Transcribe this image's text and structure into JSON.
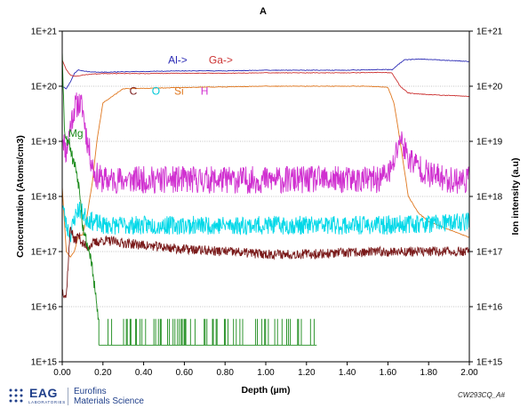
{
  "chart_data": {
    "type": "line",
    "title": "A",
    "xlabel": "Depth (µm)",
    "ylabel_left": "Concentration (Atoms/cm3)",
    "ylabel_right": "Ion intensity (a.u)",
    "xlim": [
      0,
      2.0
    ],
    "ylim": [
      1000000000000000.0,
      1e+21
    ],
    "y_scale": "log",
    "x_ticks": [
      "0.00",
      "0.20",
      "0.40",
      "0.60",
      "0.80",
      "1.00",
      "1.20",
      "1.40",
      "1.60",
      "1.80",
      "2.00"
    ],
    "y_ticks": [
      "1E+15",
      "1E+16",
      "1E+17",
      "1E+18",
      "1E+19",
      "1E+20",
      "1E+21"
    ],
    "grid": "horizontal-dotted",
    "annotations": [
      {
        "text": "Al->",
        "color": "#2b2bb5",
        "x": 0.52,
        "y": 2.6e+20
      },
      {
        "text": "Ga->",
        "color": "#cc3333",
        "x": 0.72,
        "y": 2.6e+20
      },
      {
        "text": "C",
        "color": "#7a1a1a",
        "x": 0.33,
        "y": 7e+19
      },
      {
        "text": "O",
        "color": "#00c8d8",
        "x": 0.44,
        "y": 7e+19
      },
      {
        "text": "Si",
        "color": "#e07820",
        "x": 0.55,
        "y": 7e+19
      },
      {
        "text": "H",
        "color": "#d030d0",
        "x": 0.68,
        "y": 7e+19
      },
      {
        "text": "Mg",
        "color": "#1a8a1a",
        "x": 0.03,
        "y": 1.2e+19
      }
    ],
    "series": [
      {
        "name": "Al",
        "color": "#2b2bb5",
        "axis": "right",
        "x": [
          0.0,
          0.02,
          0.04,
          0.06,
          0.08,
          0.1,
          0.12,
          0.15,
          0.2,
          0.4,
          0.6,
          0.8,
          1.0,
          1.2,
          1.4,
          1.55,
          1.62,
          1.68,
          1.75,
          1.85,
          2.0
        ],
        "y": [
          1e+20,
          9e+19,
          1.2e+20,
          1.7e+20,
          2e+20,
          1.9e+20,
          1.85e+20,
          1.8e+20,
          1.8e+20,
          1.85e+20,
          1.9e+20,
          1.9e+20,
          1.95e+20,
          1.95e+20,
          1.95e+20,
          2e+20,
          2e+20,
          3e+20,
          3.1e+20,
          3e+20,
          2.8e+20
        ]
      },
      {
        "name": "Ga",
        "color": "#cc3333",
        "axis": "right",
        "x": [
          0.0,
          0.02,
          0.04,
          0.06,
          0.08,
          0.1,
          0.15,
          0.2,
          0.4,
          0.6,
          0.8,
          1.0,
          1.2,
          1.4,
          1.55,
          1.62,
          1.66,
          1.7,
          1.8,
          1.9,
          2.0
        ],
        "y": [
          3e+20,
          2e+20,
          1.6e+20,
          1.5e+20,
          1.55e+20,
          1.6e+20,
          1.65e+20,
          1.7e+20,
          1.7e+20,
          1.72e+20,
          1.72e+20,
          1.75e+20,
          1.75e+20,
          1.75e+20,
          1.78e+20,
          1.75e+20,
          1e+20,
          7.5e+19,
          7e+19,
          6.8e+19,
          6.5e+19
        ]
      },
      {
        "name": "Si",
        "color": "#e07820",
        "axis": "left",
        "x": [
          0.0,
          0.02,
          0.04,
          0.06,
          0.08,
          0.1,
          0.12,
          0.15,
          0.17,
          0.2,
          0.3,
          0.6,
          1.0,
          1.2,
          1.4,
          1.5,
          1.55,
          1.6,
          1.63,
          1.66,
          1.7,
          1.75,
          1.8,
          1.9,
          2.0
        ],
        "y": [
          1.5e+18,
          1e+17,
          8e+16,
          1e+17,
          2e+17,
          2e+17,
          4e+17,
          2e+18,
          1e+19,
          5e+19,
          9e+19,
          9.5e+19,
          1e+20,
          1e+20,
          1e+20,
          1e+20,
          9.8e+19,
          9.5e+19,
          5e+19,
          1e+19,
          1e+18,
          5e+17,
          3.5e+17,
          2.5e+17,
          1.8e+17
        ]
      },
      {
        "name": "H",
        "color": "#d030d0",
        "axis": "left",
        "noise": 0.25,
        "seed": 11,
        "x": [
          0.0,
          0.02,
          0.04,
          0.06,
          0.08,
          0.1,
          0.12,
          0.14,
          0.16,
          0.2,
          0.4,
          0.6,
          0.8,
          1.0,
          1.2,
          1.4,
          1.55,
          1.62,
          1.66,
          1.7,
          1.8,
          1.9,
          2.0
        ],
        "y": [
          1.5e+19,
          6e+18,
          2e+19,
          4e+19,
          5e+19,
          4e+19,
          1.2e+19,
          5e+18,
          2.5e+18,
          2e+18,
          2e+18,
          2e+18,
          2e+18,
          2e+18,
          2e+18,
          2e+18,
          2e+18,
          3e+18,
          1.2e+19,
          5e+18,
          2.5e+18,
          2e+18,
          2e+18
        ]
      },
      {
        "name": "O",
        "color": "#00d8e8",
        "axis": "left",
        "noise": 0.17,
        "seed": 23,
        "x": [
          0.0,
          0.02,
          0.04,
          0.06,
          0.08,
          0.1,
          0.12,
          0.15,
          0.2,
          0.4,
          0.6,
          0.8,
          1.0,
          1.2,
          1.4,
          1.6,
          1.7,
          1.8,
          1.9,
          2.0
        ],
        "y": [
          8e+17,
          3e+17,
          2e+17,
          4e+17,
          6e+17,
          5e+17,
          4e+17,
          3.5e+17,
          3e+17,
          3e+17,
          3e+17,
          3e+17,
          3e+17,
          3e+17,
          3e+17,
          3e+17,
          3.2e+17,
          3.2e+17,
          3.3e+17,
          3.5e+17
        ]
      },
      {
        "name": "C",
        "color": "#7a1a1a",
        "axis": "left",
        "noise": 0.09,
        "seed": 37,
        "x": [
          0.0,
          0.02,
          0.04,
          0.06,
          0.08,
          0.1,
          0.12,
          0.15,
          0.2,
          0.4,
          0.6,
          0.8,
          1.0,
          1.2,
          1.4,
          1.6,
          1.8,
          2.0
        ],
        "y": [
          2e+16,
          1.5e+16,
          3e+17,
          1.5e+17,
          2e+17,
          1.4e+17,
          1.2e+17,
          1.4e+17,
          1.6e+17,
          1.3e+17,
          1.1e+17,
          1e+17,
          9e+16,
          9e+16,
          9.5e+16,
          1e+17,
          1e+17,
          1e+17
        ]
      },
      {
        "name": "Mg",
        "color": "#1a8a1a",
        "axis": "left",
        "noise": 0.12,
        "seed": 53,
        "x": [
          0.0,
          0.01,
          0.02,
          0.03,
          0.05,
          0.07,
          0.09,
          0.1,
          0.12,
          0.14,
          0.16,
          0.18
        ],
        "y": [
          5e+20,
          2e+19,
          1e+19,
          1.2e+19,
          5e+18,
          3e+18,
          1e+18,
          3e+17,
          1.5e+17,
          8e+16,
          2e+16,
          5000000000000000.0
        ]
      },
      {
        "name": "Mg-bg",
        "color": "#1a8a1a",
        "axis": "left",
        "spikes": true,
        "x0": 0.18,
        "x1": 1.25,
        "floor": 2000000000000000.0,
        "peak": 6000000000000000.0,
        "seed": 71
      }
    ]
  },
  "footer": {
    "logo_name": "EAG",
    "logo_sub": "LABORATORIES",
    "company_line1": "Eurofins",
    "company_line2": "Materials Science",
    "file_id": "CW293CQ_A#",
    "logo_icon": "eag-logo-icon"
  }
}
